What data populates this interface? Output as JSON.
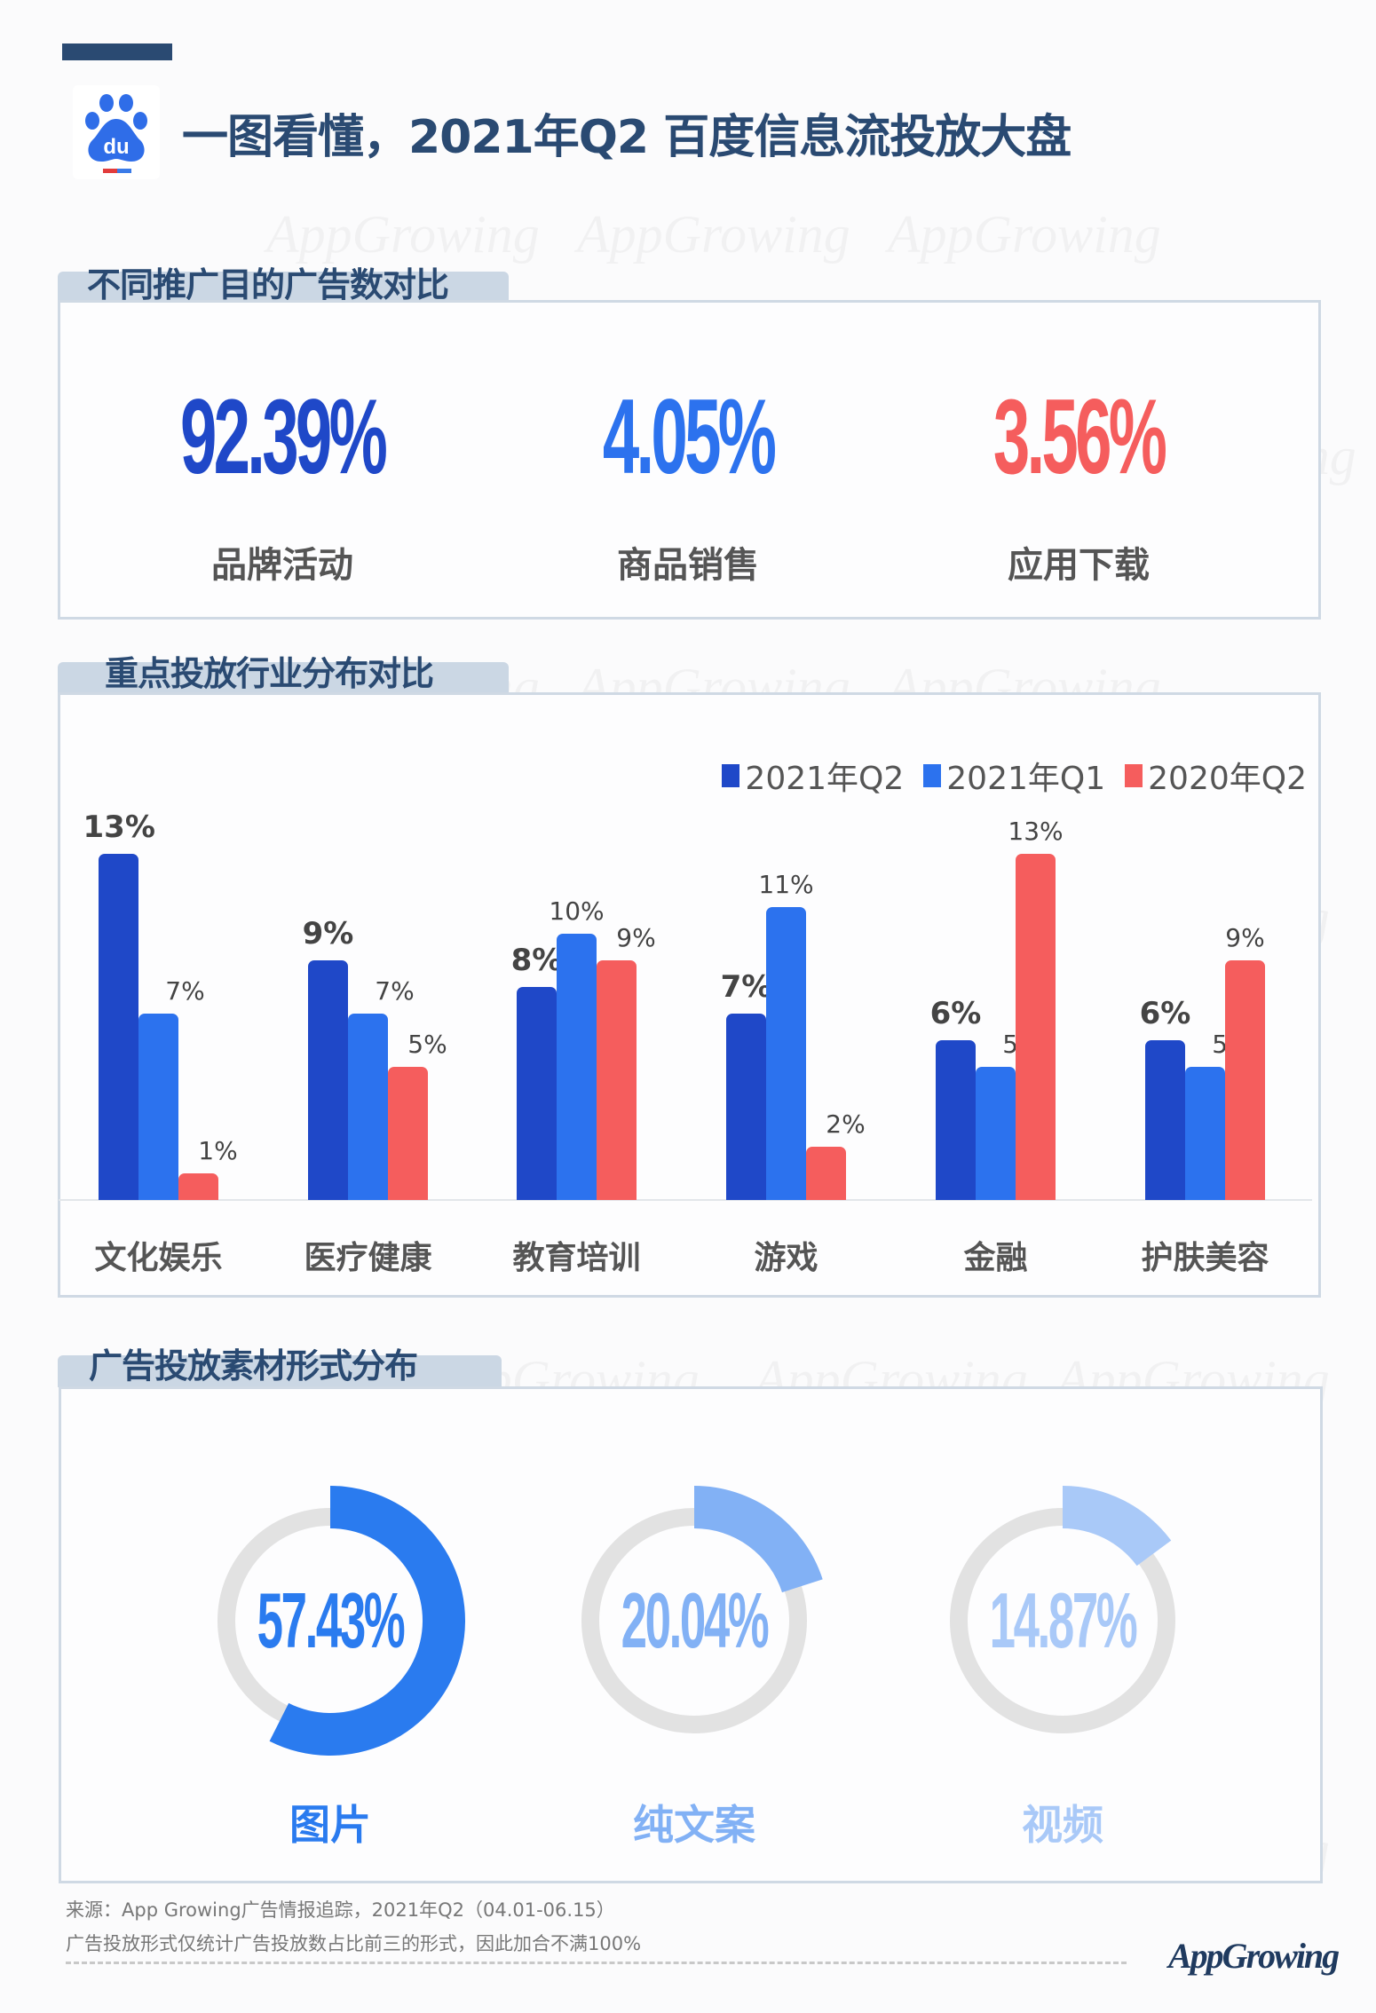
{
  "header": {
    "title": "一图看懂，2021年Q2 百度信息流投放大盘",
    "logo_text": "du",
    "accent_bar_color": "#2a4a72"
  },
  "section_goals": {
    "title": "不同推广目的广告数对比",
    "items": [
      {
        "value": "92.39%",
        "label": "品牌活动",
        "color": "#1f48c8"
      },
      {
        "value": "4.05%",
        "label": "商品销售",
        "color": "#2c72ee"
      },
      {
        "value": "3.56%",
        "label": "应用下载",
        "color": "#f55d5d"
      }
    ]
  },
  "section_industry": {
    "title": "重点投放行业分布对比",
    "legend": [
      {
        "label": "2021年Q2",
        "color": "#1f48c8"
      },
      {
        "label": "2021年Q1",
        "color": "#2c72ee"
      },
      {
        "label": "2020年Q2",
        "color": "#f55d5d"
      }
    ]
  },
  "section_format": {
    "title": "广告投放素材形式分布",
    "items": [
      {
        "value": "57.43%",
        "label": "图片",
        "color": "#2a7bef",
        "pct": 57.43
      },
      {
        "value": "20.04%",
        "label": "纯文案",
        "color": "#82b1f5",
        "pct": 20.04
      },
      {
        "value": "14.87%",
        "label": "视频",
        "color": "#a9c9f8",
        "pct": 14.87
      }
    ]
  },
  "footer": {
    "source": "来源：App Growing广告情报追踪，2021年Q2（04.01-06.15）",
    "note": "广告投放形式仅统计广告投放数占比前三的形式，因此加合不满100%",
    "brand": "AppGrowing"
  },
  "watermark": "AppGrowing",
  "chart_data": [
    {
      "type": "bar",
      "title": "重点投放行业分布对比",
      "categories": [
        "文化娱乐",
        "医疗健康",
        "教育培训",
        "游戏",
        "金融",
        "护肤美容"
      ],
      "series": [
        {
          "name": "2021年Q2",
          "values": [
            13,
            9,
            8,
            7,
            6,
            6
          ],
          "labels": [
            "13%",
            "9%",
            "8%",
            "7%",
            "6%",
            "6%"
          ]
        },
        {
          "name": "2021年Q1",
          "values": [
            7,
            7,
            10,
            11,
            5,
            5
          ],
          "labels": [
            "7%",
            "7%",
            "10%",
            "11%",
            "5%",
            "5%"
          ]
        },
        {
          "name": "2020年Q2",
          "values": [
            1,
            5,
            9,
            2,
            13,
            9
          ],
          "labels": [
            "1%",
            "5%",
            "9%",
            "2%",
            "13%",
            "9%"
          ]
        }
      ],
      "xlabel": "",
      "ylabel": "",
      "unit": "%",
      "grid": false,
      "legend_position": "top-right"
    },
    {
      "type": "pie",
      "title": "广告投放素材形式分布",
      "categories": [
        "图片",
        "纯文案",
        "视频"
      ],
      "values": [
        57.43,
        20.04,
        14.87
      ],
      "unit": "%"
    },
    {
      "type": "table",
      "title": "不同推广目的广告数对比",
      "categories": [
        "品牌活动",
        "商品销售",
        "应用下载"
      ],
      "values": [
        92.39,
        4.05,
        3.56
      ],
      "unit": "%"
    }
  ]
}
